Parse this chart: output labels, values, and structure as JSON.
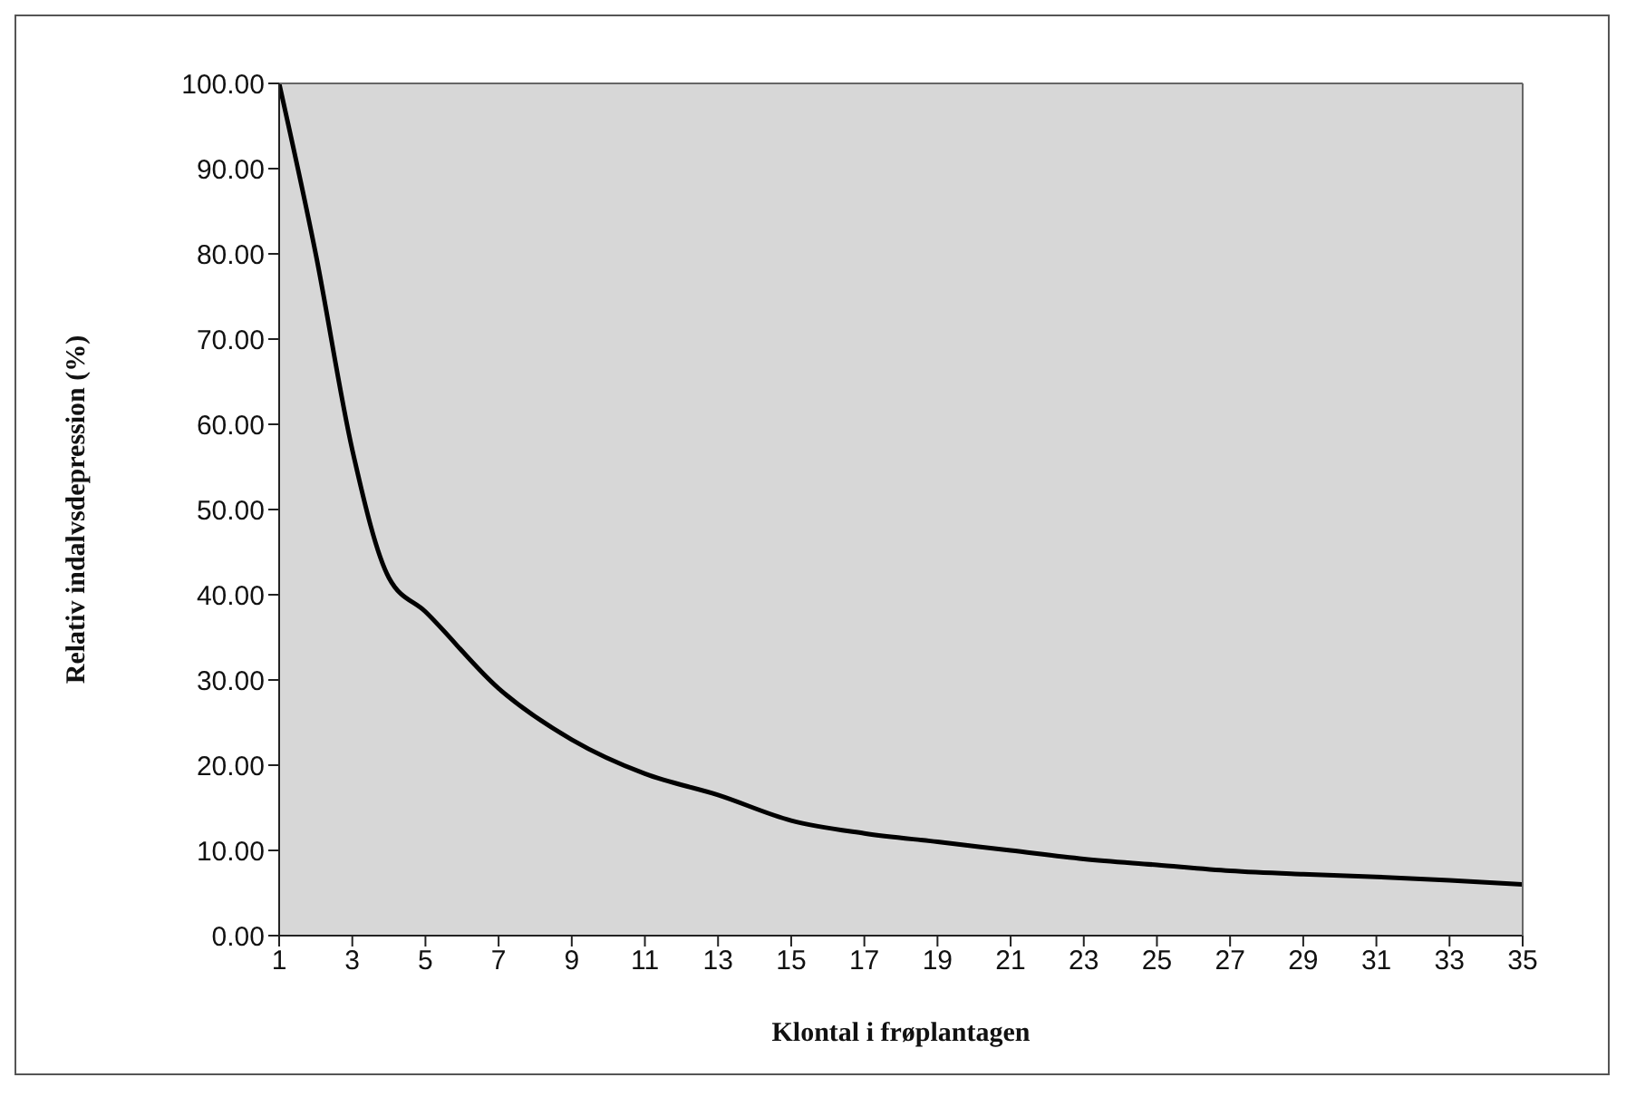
{
  "chart_data": {
    "type": "line",
    "xlabel": "Klontal i frøplantagen",
    "ylabel": "Relativ indalvsdepression (%)",
    "x": [
      1,
      2,
      3,
      4,
      5,
      7,
      9,
      11,
      13,
      15,
      17,
      19,
      21,
      23,
      25,
      27,
      29,
      31,
      33,
      35
    ],
    "series": [
      {
        "color": "#000000",
        "values": [
          100,
          80,
          57,
          42,
          38,
          29,
          23,
          19,
          16.5,
          13.5,
          12,
          11,
          10,
          9,
          8.3,
          7.6,
          7.2,
          6.9,
          6.5,
          6
        ]
      }
    ],
    "xlim": [
      1,
      35
    ],
    "xticks": [
      1,
      3,
      5,
      7,
      9,
      11,
      13,
      15,
      17,
      19,
      21,
      23,
      25,
      27,
      29,
      31,
      33,
      35
    ],
    "ylim": [
      0,
      100
    ],
    "yticks": [
      {
        "value": 0,
        "label": "0.00"
      },
      {
        "value": 10,
        "label": "10.00"
      },
      {
        "value": 20,
        "label": "20.00"
      },
      {
        "value": 30,
        "label": "30.00"
      },
      {
        "value": 40,
        "label": "40.00"
      },
      {
        "value": 50,
        "label": "50.00"
      },
      {
        "value": 60,
        "label": "60.00"
      },
      {
        "value": 70,
        "label": "70.00"
      },
      {
        "value": 80,
        "label": "80.00"
      },
      {
        "value": 90,
        "label": "90.00"
      },
      {
        "value": 100,
        "label": "100.00"
      }
    ],
    "grid": false,
    "legend": false,
    "marker": "none",
    "line_style": "solid"
  }
}
